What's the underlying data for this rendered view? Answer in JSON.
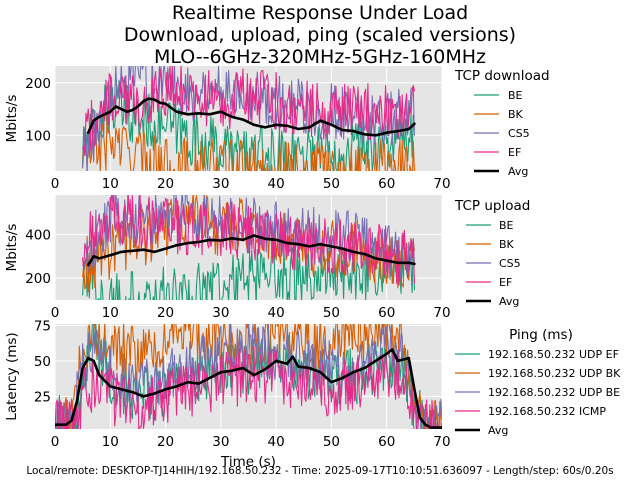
{
  "title": {
    "lines": [
      "Realtime Response Under Load",
      "Download, upload, ping (scaled versions)",
      "MLO--6GHz-320MHz-5GHz-160MHz"
    ]
  },
  "footer": "Local/remote: DESKTOP-TJ14HIH/192.168.50.232 - Time: 2025-09-17T10:10:51.636097 - Length/step: 60s/0.20s",
  "colors": {
    "plot_bg": "#e5e5e5",
    "grid": "#ffffff",
    "series1": "#1b9e77",
    "series2": "#d95f02",
    "series3": "#7570b3",
    "series4": "#e7298a",
    "avg": "#000000"
  },
  "chart_data": [
    {
      "type": "line",
      "ylabel": "Mbits/s",
      "xlim": [
        0,
        70
      ],
      "ylim": [
        32,
        232
      ],
      "xticks": [
        0,
        10,
        20,
        30,
        40,
        50,
        60,
        70
      ],
      "yticks": [
        100,
        200
      ],
      "legend": {
        "title": "TCP download",
        "placement": "right"
      },
      "series": [
        {
          "name": "BE",
          "x": [
            5,
            10,
            15,
            20,
            25,
            30,
            35,
            40,
            45,
            50,
            55,
            60,
            65
          ],
          "values": [
            70,
            160,
            130,
            120,
            95,
            75,
            65,
            60,
            75,
            70,
            80,
            85,
            90
          ]
        },
        {
          "name": "BK",
          "x": [
            5,
            10,
            15,
            20,
            25,
            30,
            35,
            40,
            45,
            50,
            55,
            60,
            65
          ],
          "values": [
            60,
            90,
            60,
            45,
            40,
            40,
            35,
            38,
            35,
            35,
            35,
            40,
            45
          ]
        },
        {
          "name": "CS5",
          "x": [
            5,
            10,
            15,
            20,
            25,
            30,
            35,
            40,
            45,
            50,
            55,
            60,
            65
          ],
          "values": [
            60,
            170,
            210,
            200,
            180,
            190,
            185,
            160,
            150,
            145,
            135,
            130,
            150
          ]
        },
        {
          "name": "EF",
          "x": [
            5,
            10,
            15,
            20,
            25,
            30,
            35,
            40,
            45,
            50,
            55,
            60,
            65
          ],
          "values": [
            95,
            170,
            160,
            190,
            180,
            160,
            175,
            165,
            150,
            140,
            145,
            140,
            160
          ]
        },
        {
          "name": "Avg",
          "x": [
            6,
            7,
            8,
            9,
            10,
            11,
            12,
            13,
            14,
            15,
            16,
            17,
            18,
            19,
            20,
            22,
            24,
            26,
            28,
            30,
            32,
            34,
            36,
            38,
            40,
            42,
            44,
            46,
            48,
            50,
            52,
            54,
            56,
            58,
            60,
            62,
            64,
            65
          ],
          "values": [
            105,
            128,
            135,
            140,
            145,
            155,
            150,
            145,
            148,
            155,
            165,
            170,
            168,
            162,
            160,
            145,
            140,
            142,
            140,
            145,
            135,
            130,
            120,
            115,
            120,
            118,
            112,
            115,
            128,
            120,
            110,
            108,
            102,
            100,
            105,
            108,
            112,
            122
          ]
        }
      ]
    },
    {
      "type": "line",
      "ylabel": "Mbits/s",
      "xlim": [
        0,
        70
      ],
      "ylim": [
        100,
        580
      ],
      "xticks": [
        0,
        10,
        20,
        30,
        40,
        50,
        60,
        70
      ],
      "yticks": [
        200,
        400
      ],
      "legend": {
        "title": "TCP upload",
        "placement": "right"
      },
      "series": [
        {
          "name": "BE",
          "x": [
            5,
            10,
            15,
            20,
            25,
            30,
            35,
            40,
            45,
            50,
            55,
            60,
            65
          ],
          "values": [
            170,
            110,
            105,
            120,
            140,
            180,
            200,
            210,
            215,
            230,
            220,
            250,
            260
          ]
        },
        {
          "name": "BK",
          "x": [
            5,
            10,
            15,
            20,
            25,
            30,
            35,
            40,
            45,
            50,
            55,
            60,
            65
          ],
          "values": [
            250,
            310,
            380,
            420,
            500,
            420,
            440,
            400,
            330,
            330,
            330,
            290,
            260
          ]
        },
        {
          "name": "CS5",
          "x": [
            5,
            10,
            15,
            20,
            25,
            30,
            35,
            40,
            45,
            50,
            55,
            60,
            65
          ],
          "values": [
            300,
            480,
            460,
            500,
            480,
            460,
            440,
            420,
            400,
            390,
            380,
            320,
            280
          ]
        },
        {
          "name": "EF",
          "x": [
            5,
            10,
            15,
            20,
            25,
            30,
            35,
            40,
            45,
            50,
            55,
            60,
            65
          ],
          "values": [
            330,
            500,
            470,
            450,
            420,
            430,
            400,
            380,
            360,
            350,
            330,
            310,
            280
          ]
        },
        {
          "name": "Avg",
          "x": [
            6,
            7,
            8,
            10,
            12,
            14,
            16,
            18,
            20,
            22,
            24,
            26,
            28,
            30,
            32,
            34,
            36,
            38,
            40,
            42,
            44,
            46,
            48,
            50,
            52,
            54,
            56,
            58,
            60,
            62,
            64,
            65
          ],
          "values": [
            260,
            300,
            290,
            305,
            320,
            325,
            330,
            320,
            335,
            350,
            360,
            365,
            375,
            372,
            382,
            375,
            395,
            380,
            375,
            360,
            355,
            345,
            355,
            345,
            335,
            320,
            310,
            290,
            280,
            270,
            270,
            265
          ]
        }
      ]
    },
    {
      "type": "line",
      "ylabel": "Latency (ms)",
      "xlabel": "Time (s)",
      "xlim": [
        0,
        70
      ],
      "ylim": [
        2,
        76
      ],
      "xticks": [
        0,
        10,
        20,
        30,
        40,
        50,
        60,
        70
      ],
      "yticks": [
        25,
        50,
        75
      ],
      "legend": {
        "title": "Ping (ms)",
        "placement": "right"
      },
      "series": [
        {
          "name": "192.168.50.232 UDP EF",
          "x": [
            0,
            3,
            5,
            7,
            10,
            15,
            20,
            25,
            30,
            35,
            40,
            45,
            50,
            55,
            60,
            63,
            65,
            67,
            70
          ],
          "values": [
            5,
            8,
            30,
            65,
            40,
            25,
            30,
            35,
            45,
            45,
            50,
            45,
            35,
            40,
            50,
            45,
            20,
            5,
            3
          ]
        },
        {
          "name": "192.168.50.232 UDP BK",
          "x": [
            0,
            3,
            5,
            7,
            10,
            15,
            20,
            25,
            30,
            35,
            40,
            45,
            50,
            55,
            60,
            63,
            65,
            67,
            70
          ],
          "values": [
            4,
            6,
            55,
            70,
            60,
            55,
            60,
            70,
            65,
            60,
            70,
            65,
            65,
            70,
            70,
            65,
            25,
            4,
            3
          ]
        },
        {
          "name": "192.168.50.232 UDP BE",
          "x": [
            0,
            3,
            5,
            7,
            10,
            15,
            20,
            25,
            30,
            35,
            40,
            45,
            50,
            55,
            60,
            63,
            65,
            67,
            70
          ],
          "values": [
            5,
            7,
            45,
            55,
            40,
            30,
            40,
            45,
            55,
            60,
            55,
            50,
            45,
            45,
            60,
            50,
            15,
            4,
            3
          ]
        },
        {
          "name": "192.168.50.232 ICMP",
          "x": [
            0,
            3,
            5,
            7,
            10,
            15,
            20,
            25,
            30,
            35,
            40,
            45,
            50,
            55,
            60,
            63,
            65,
            67,
            70
          ],
          "values": [
            3,
            5,
            25,
            35,
            25,
            15,
            25,
            30,
            35,
            40,
            40,
            35,
            30,
            35,
            45,
            40,
            10,
            3,
            2
          ]
        },
        {
          "name": "Avg",
          "x": [
            0,
            2,
            3,
            4,
            5,
            6,
            7,
            8,
            10,
            12,
            14,
            16,
            18,
            20,
            22,
            24,
            26,
            28,
            30,
            32,
            34,
            36,
            38,
            40,
            42,
            43,
            44,
            46,
            48,
            50,
            52,
            54,
            56,
            58,
            60,
            61,
            62,
            64,
            65,
            66,
            67,
            68,
            70
          ],
          "values": [
            5,
            5,
            8,
            22,
            45,
            52,
            50,
            40,
            32,
            30,
            28,
            25,
            27,
            30,
            32,
            35,
            34,
            38,
            42,
            43,
            45,
            40,
            44,
            50,
            48,
            53,
            46,
            45,
            42,
            35,
            38,
            42,
            45,
            50,
            55,
            58,
            50,
            52,
            30,
            10,
            5,
            3,
            3
          ]
        }
      ]
    }
  ]
}
